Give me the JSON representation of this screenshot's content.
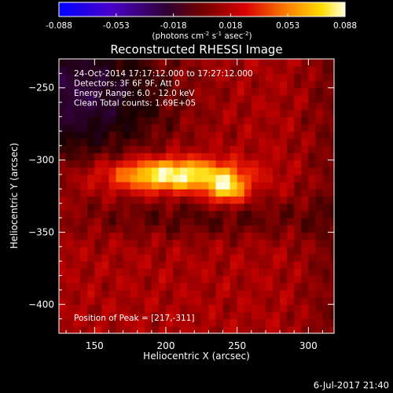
{
  "chart_data": {
    "type": "heatmap",
    "title": "Reconstructed RHESSI Image",
    "xlabel": "Heliocentric X (arcsec)",
    "ylabel": "Heliocentric Y (arcsec)",
    "xlim": [
      125,
      318
    ],
    "ylim": [
      -420,
      -230
    ],
    "x_ticks": [
      150,
      200,
      250,
      300
    ],
    "y_ticks": [
      -250,
      -300,
      -350,
      -400
    ],
    "colorbar": {
      "range": [
        -0.088,
        0.088
      ],
      "ticks": [
        "-0.088",
        "-0.053",
        "-0.018",
        "0.018",
        "0.053",
        "0.088"
      ],
      "unit_label": "(photons cm",
      "unit_exp1": "-2",
      "unit_mid": " s",
      "unit_exp2": "-1",
      "unit_mid2": " asec",
      "unit_exp3": "-2",
      "unit_end": ")",
      "colormap": "rhessi-thermal (blue-purple-black-red-orange-yellow-white)"
    },
    "annotations": [
      "24-Oct-2014 17:17:12.000 to 17:27:12.000",
      "Detectors: 3F 6F 9F, Att 0",
      "Energy Range: 6.0 - 12.0 keV",
      "Clean     Total counts: 1.69E+05"
    ],
    "peak_label": "Position of Peak = [217,-311]",
    "peak": [
      217,
      -311
    ],
    "sources": [
      {
        "x": 205,
        "y": -310,
        "peak": 0.088
      },
      {
        "x": 243,
        "y": -320,
        "peak": 0.075
      }
    ],
    "footer": "6-Jul-2017 21:40"
  }
}
